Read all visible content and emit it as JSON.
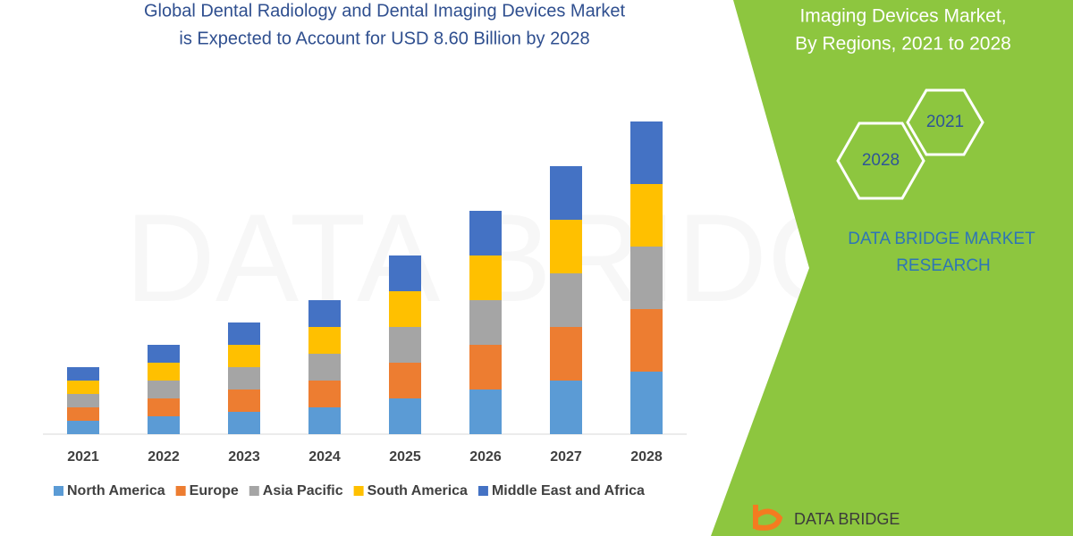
{
  "chart_data": {
    "type": "stacked_bar",
    "title": [
      "Global Dental Radiology and Dental Imaging Devices Market",
      "is Expected to Account for USD 8.60 Billion by 2028"
    ],
    "categories": [
      "2021",
      "2022",
      "2023",
      "2024",
      "2025",
      "2026",
      "2027",
      "2028"
    ],
    "series": [
      {
        "name": "North America",
        "color": "#5b9bd5",
        "values": [
          15,
          20,
          25,
          30,
          40,
          50,
          60,
          70
        ]
      },
      {
        "name": "Europe",
        "color": "#ed7d31",
        "values": [
          15,
          20,
          25,
          30,
          40,
          50,
          60,
          70
        ]
      },
      {
        "name": "Asia Pacific",
        "color": "#a5a5a5",
        "values": [
          15,
          20,
          25,
          30,
          40,
          50,
          60,
          70
        ]
      },
      {
        "name": "South America",
        "color": "#ffc000",
        "values": [
          15,
          20,
          25,
          30,
          40,
          50,
          60,
          70
        ]
      },
      {
        "name": "Middle East and Africa",
        "color": "#4472c4",
        "values": [
          15,
          20,
          25,
          30,
          40,
          50,
          60,
          70
        ]
      }
    ]
  },
  "panel": {
    "heading": [
      "Imaging Devices Market,",
      "By Regions, 2021 to 2028"
    ],
    "hexagons": [
      "2021",
      "2028"
    ],
    "brand": [
      "DATA BRIDGE MARKET",
      "RESEARCH"
    ],
    "logo": "DATA BRIDGE"
  }
}
